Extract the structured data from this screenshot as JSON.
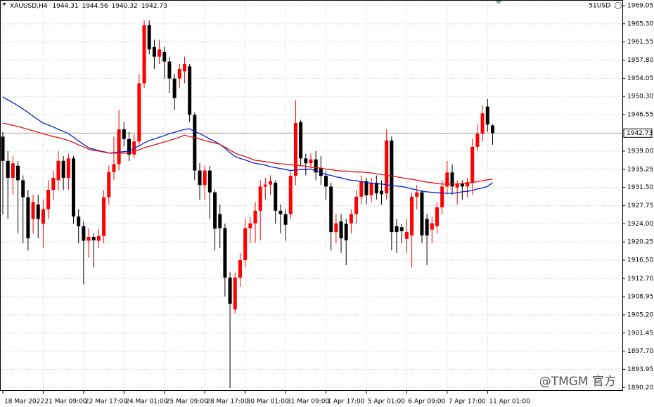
{
  "chart_data": {
    "type": "candlestick",
    "header": {
      "symbol": "XAUUSD,H4",
      "ohlc": [
        1944.31,
        1944.56,
        1940.32,
        1942.73
      ]
    },
    "top_right_label": "51USD",
    "watermark": "@TMGM 官方",
    "current_price": 1942.73,
    "up_color": "#ff0000",
    "down_color": "#000000",
    "grid": true,
    "ylim": [
      1889.66,
      1970.21
    ],
    "yticks": [
      1969.05,
      {
        "value": 1965.3,
        "label": "1965.30"
      },
      1961.55,
      {
        "value": 1957.8,
        "label": "1957.80"
      },
      1954.05,
      {
        "value": 1950.3,
        "label": "1950.30"
      },
      1946.55,
      {
        "value": 1939,
        "label": "1939.00"
      },
      1935.25,
      {
        "value": 1931.5,
        "label": "1931.50"
      },
      1927.75,
      {
        "value": 1924,
        "label": "1924.00"
      },
      1920.25,
      {
        "value": 1916.5,
        "label": "1916.50"
      },
      {
        "value": 1912.7,
        "label": "1912.70"
      },
      1908.95,
      {
        "value": 1905.2,
        "label": "1905.20"
      },
      1901.45,
      {
        "value": 1897.7,
        "label": "1897.70"
      },
      1893.95,
      {
        "value": 1890.2,
        "label": "1890.20"
      }
    ],
    "categories": [
      "18 Mar 2022",
      null,
      null,
      null,
      null,
      null,
      null,
      null,
      "21 Mar 09:00",
      null,
      null,
      null,
      null,
      null,
      null,
      null,
      "22 Mar 17:00",
      null,
      null,
      null,
      null,
      null,
      null,
      null,
      "24 Mar 01:00",
      null,
      null,
      null,
      null,
      null,
      null,
      null,
      "25 Mar 09:00",
      null,
      null,
      null,
      null,
      null,
      null,
      null,
      "28 Mar 17:00",
      null,
      null,
      null,
      null,
      null,
      null,
      null,
      "30 Mar 01:00",
      null,
      null,
      null,
      null,
      null,
      null,
      null,
      "31 Mar 09:00",
      null,
      null,
      null,
      null,
      null,
      null,
      null,
      "1 Apr 17:00",
      null,
      null,
      null,
      null,
      null,
      null,
      null,
      "5 Apr 01:00",
      null,
      null,
      null,
      null,
      null,
      null,
      null,
      "6 Apr 09:00",
      null,
      null,
      null,
      null,
      null,
      null,
      null,
      "7 Apr 17:00",
      null,
      null,
      null,
      null,
      null,
      null,
      null,
      "11 Apr 01:00",
      null
    ],
    "open": [
      1942,
      1937,
      1933.5,
      1936,
      1933,
      1929.5,
      1925,
      1928,
      1924,
      1927,
      1931,
      1933,
      1937,
      1933.5,
      1937.5,
      1925.5,
      1923.5,
      1920.5,
      1921.3,
      1920.5,
      1921.5,
      1929.5,
      1934.7,
      1936.3,
      1943.5,
      1941.5,
      1938.3,
      1941,
      1953,
      1965,
      1960.5,
      1958.5,
      1959.5,
      1957.5,
      1954,
      1954,
      1955.5,
      1956.5,
      1946.5,
      1935,
      1932,
      1935,
      1930.5,
      1926,
      1923.1,
      1912.9,
      1906.3,
      1912.9,
      1916.5,
      1923.1,
      1924.1,
      1926.7,
      1931.7,
      1932.1,
      1932.5,
      1926.7,
      1926,
      1926,
      1933.9,
      1945,
      1937.5,
      1936.5,
      1937.3,
      1935.5,
      1933.9,
      1931.7,
      1922.3,
      1924.5,
      1924,
      1924.1,
      1926,
      1929.6,
      1932.8,
      1929.9,
      1932.5,
      1930.8,
      1930.3,
      1941.2,
      1923.5,
      1923.3,
      1920.9,
      1921.6,
      1929.6,
      1930.5,
      1925,
      1922.8,
      1923.5,
      1927.4,
      1931.7,
      1934.6,
      1931.5,
      1932.3,
      1931.7,
      1932.5,
      1939.9,
      1942.6,
      1948.2,
      1944.31
    ],
    "high": [
      1943,
      1939,
      1938,
      1937,
      1934,
      1931,
      1930,
      1930,
      1929,
      1933,
      1935,
      1939,
      1938,
      1938.5,
      1938,
      1927,
      1924.5,
      1923,
      1922,
      1923,
      1931,
      1936,
      1942,
      1947.5,
      1945,
      1943,
      1942.5,
      1955,
      1966,
      1966,
      1962,
      1962,
      1960.5,
      1958.5,
      1955,
      1957,
      1958.5,
      1957,
      1947,
      1936.5,
      1936,
      1936,
      1931,
      1928,
      1924,
      1914,
      1914,
      1918,
      1925,
      1925.5,
      1928.5,
      1933,
      1933.5,
      1934,
      1933,
      1928,
      1927,
      1935,
      1949.5,
      1945.5,
      1938.5,
      1938.5,
      1939,
      1938,
      1935,
      1932.5,
      1926,
      1926,
      1925,
      1927,
      1931,
      1934,
      1933.5,
      1933.5,
      1934,
      1933,
      1943.5,
      1942,
      1925,
      1924,
      1925,
      1930.5,
      1932,
      1931,
      1926,
      1925.5,
      1928.5,
      1933,
      1937,
      1936.3,
      1933,
      1933,
      1933.5,
      1941.5,
      1944.5,
      1948.5,
      1949.8,
      1944.56
    ],
    "low": [
      1926,
      1925,
      1930,
      1922,
      1920,
      1918.5,
      1922,
      1921,
      1919,
      1925,
      1929,
      1931,
      1931,
      1931,
      1924,
      1920,
      1911.5,
      1917,
      1915,
      1919,
      1920,
      1928,
      1933,
      1935,
      1940,
      1937,
      1937.5,
      1940,
      1952,
      1959,
      1956,
      1957,
      1954,
      1951,
      1947.5,
      1952,
      1953,
      1945,
      1933,
      1929,
      1929,
      1925,
      1918.5,
      1919,
      1909,
      1890.1,
      1905.5,
      1911,
      1915,
      1920,
      1920,
      1920.6,
      1929,
      1930,
      1924,
      1922,
      1920.5,
      1925,
      1932,
      1936,
      1934,
      1935.5,
      1933,
      1932,
      1929,
      1918.5,
      1920,
      1918,
      1915.5,
      1922,
      1924,
      1928,
      1928,
      1928.5,
      1929,
      1928,
      1929,
      1918.5,
      1918,
      1920,
      1918,
      1915,
      1927,
      1920,
      1915.5,
      1920,
      1922,
      1926,
      1930,
      1930,
      1928,
      1929,
      1929.5,
      1930,
      1939,
      1941,
      1943,
      1940.32
    ],
    "close": [
      1937,
      1933.5,
      1936.5,
      1933,
      1929.5,
      1921,
      1928.5,
      1925,
      1927,
      1931,
      1933.5,
      1937,
      1933.5,
      1937.5,
      1925.5,
      1923.5,
      1920.5,
      1921.3,
      1920.6,
      1921.5,
      1929.5,
      1934.7,
      1936.3,
      1943.5,
      1941.5,
      1938.3,
      1941,
      1953,
      1965,
      1960,
      1958.5,
      1960,
      1957.5,
      1954,
      1950,
      1956,
      1957,
      1946.5,
      1935,
      1932,
      1935,
      1930.5,
      1923,
      1923.1,
      1912.9,
      1907.5,
      1912.9,
      1916.5,
      1923.1,
      1924.1,
      1926.7,
      1931.7,
      1932.1,
      1932.8,
      1926.7,
      1926,
      1923.8,
      1933.9,
      1944.8,
      1937.5,
      1936.5,
      1937.3,
      1934.6,
      1933.9,
      1931.7,
      1922.3,
      1924.1,
      1921,
      1920.6,
      1926,
      1929.6,
      1932.8,
      1929.9,
      1932.5,
      1930.3,
      1930.1,
      1941.2,
      1922.3,
      1922.3,
      1922.5,
      1922.3,
      1929.6,
      1930.5,
      1921.6,
      1921.6,
      1924.1,
      1927.4,
      1931.7,
      1934.6,
      1931.7,
      1932.3,
      1931.7,
      1932.6,
      1939.9,
      1942.6,
      1946.8,
      1944.5,
      1942.73
    ],
    "lines": [
      {
        "color": "#0a1fc8",
        "values": [
          1950.2,
          1949.6,
          1949,
          1948.4,
          1947.7,
          1947,
          1946.2,
          1945.5,
          1944.8,
          1944.4,
          1944,
          1943.5,
          1943.1,
          1942.6,
          1941.9,
          1941.1,
          1940.4,
          1939.7,
          1939.4,
          1939.1,
          1938.9,
          1938.6,
          1938.7,
          1938.8,
          1938.9,
          1939,
          1939.6,
          1940.1,
          1940.7,
          1941.2,
          1941.5,
          1941.9,
          1942.2,
          1942.6,
          1942.9,
          1943.2,
          1943.5,
          1943.6,
          1943.1,
          1942.6,
          1942.1,
          1941.5,
          1941,
          1940.4,
          1939.6,
          1938.7,
          1937.9,
          1937.5,
          1937.2,
          1936.8,
          1936.5,
          1936.3,
          1936.1,
          1935.8,
          1935.6,
          1935.4,
          1935.2,
          1935,
          1935.1,
          1935.2,
          1935.2,
          1935.3,
          1934.9,
          1934.6,
          1934.2,
          1934,
          1933.7,
          1933.5,
          1933.2,
          1933,
          1932.9,
          1932.7,
          1932.5,
          1932.4,
          1932.3,
          1932.2,
          1932.1,
          1931.9,
          1931.8,
          1931.7,
          1931.5,
          1931.2,
          1931,
          1930.7,
          1930.6,
          1930.5,
          1930.4,
          1930.4,
          1930.3,
          1930.3,
          1930.4,
          1930.6,
          1930.7,
          1930.9,
          1931.2,
          1931.4,
          1931.7,
          1932.5
        ]
      },
      {
        "color": "#e01010",
        "values": [
          1944.8,
          1944.6,
          1944.3,
          1944.1,
          1943.8,
          1943.5,
          1943.2,
          1942.9,
          1942.6,
          1942.3,
          1942,
          1941.8,
          1941.5,
          1941.2,
          1940.8,
          1940.3,
          1939.9,
          1939.4,
          1939.2,
          1939,
          1938.8,
          1938.6,
          1938.6,
          1938.6,
          1938.6,
          1938.6,
          1939,
          1939.3,
          1939.7,
          1940,
          1940.3,
          1940.6,
          1940.9,
          1941.2,
          1941.5,
          1941.9,
          1942.3,
          1942,
          1941.8,
          1941.5,
          1941.2,
          1940.9,
          1940.7,
          1940.4,
          1939.8,
          1939.2,
          1938.6,
          1938.2,
          1937.9,
          1937.5,
          1937.1,
          1937,
          1936.8,
          1936.7,
          1936.5,
          1936.4,
          1936.3,
          1936.2,
          1936.1,
          1936,
          1935.9,
          1935.7,
          1935.6,
          1935.5,
          1935.3,
          1935.2,
          1935,
          1934.9,
          1934.9,
          1934.8,
          1934.7,
          1934.7,
          1934.6,
          1934.5,
          1934.3,
          1934.2,
          1934,
          1933.9,
          1933.7,
          1933.5,
          1933.3,
          1933.2,
          1933,
          1932.8,
          1932.6,
          1932.5,
          1932.3,
          1932.2,
          1932.2,
          1932.2,
          1932.2,
          1932.3,
          1932.4,
          1932.5,
          1932.7,
          1932.9,
          1933.1,
          1933.2
        ]
      }
    ]
  }
}
